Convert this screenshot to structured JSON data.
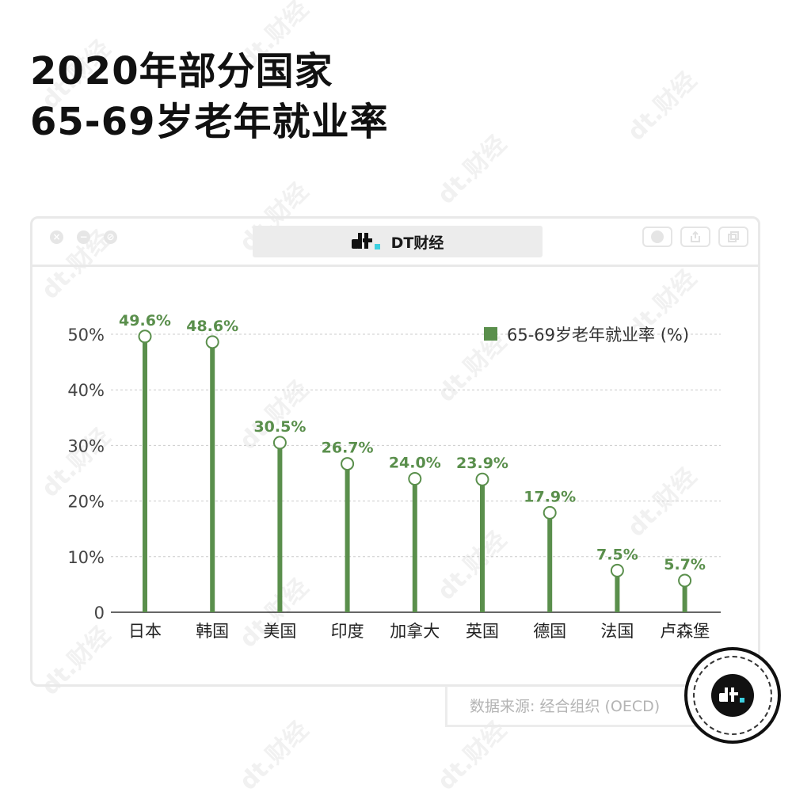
{
  "title": {
    "line1": "2020年部分国家",
    "line2": "65-69岁老年就业率"
  },
  "watermark_text": "dt.财经",
  "window": {
    "address_text": "DT财经",
    "logo_icon": "dt-logo-icon",
    "left_buttons": [
      "close-icon",
      "minimize-icon",
      "maximize-icon"
    ],
    "right_buttons": [
      "record-icon",
      "share-icon",
      "copy-icon"
    ]
  },
  "colors": {
    "bar": "#5a8f4c",
    "label": "#5a8f4c",
    "grid": "#cccccc",
    "accent": "#3dd0e0"
  },
  "chart_data": {
    "type": "bar",
    "categories": [
      "日本",
      "韩国",
      "美国",
      "印度",
      "加拿大",
      "英国",
      "德国",
      "法国",
      "卢森堡"
    ],
    "series": [
      {
        "name": "65-69岁老年就业率 (%)",
        "values": [
          49.6,
          48.6,
          30.5,
          26.7,
          24.0,
          23.9,
          17.9,
          7.5,
          5.7
        ]
      }
    ],
    "data_labels": [
      "49.6%",
      "48.6%",
      "30.5%",
      "26.7%",
      "24.0%",
      "23.9%",
      "17.9%",
      "7.5%",
      "5.7%"
    ],
    "y_ticks": [
      {
        "value": 0,
        "label": "0"
      },
      {
        "value": 10,
        "label": "10%"
      },
      {
        "value": 20,
        "label": "20%"
      },
      {
        "value": 30,
        "label": "30%"
      },
      {
        "value": 40,
        "label": "40%"
      },
      {
        "value": 50,
        "label": "50%"
      }
    ],
    "ylim": [
      0,
      50
    ],
    "legend": {
      "label": "65-69岁老年就业率 (%)",
      "position": "top-right"
    },
    "grid": true,
    "marker": "lollipop"
  },
  "source": "数据来源: 经合组织 (OECD)",
  "badge_icon": "dt-badge-icon"
}
